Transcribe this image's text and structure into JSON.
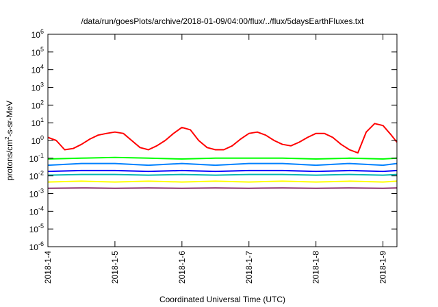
{
  "chart_data": {
    "type": "line",
    "title": "/data/run/goesPlots/archive/2018-01-09/04:00/flux/../flux/5daysEarthFluxes.txt",
    "xlabel": "Coordinated Universal Time (UTC)",
    "ylabel": "protons/cm²-s-sr-MeV",
    "x_ticks": [
      "2018-1-4",
      "2018-1-5",
      "2018-1-6",
      "2018-1-7",
      "2018-1-8",
      "2018-1-9"
    ],
    "xlim": [
      "2018-01-04T00:00",
      "2018-01-09T05:00"
    ],
    "y_scale": "log",
    "ylim": [
      1e-06,
      1000000.0
    ],
    "y_tick_exponents": [
      -6,
      -5,
      -4,
      -3,
      -2,
      -1,
      0,
      1,
      2,
      3,
      4,
      5,
      6
    ],
    "y_tick_base": "10",
    "grid": false,
    "legend": "none",
    "series": [
      {
        "color": "#ff0000",
        "x": [
          "2018-01-04T00:00",
          "2018-01-04T03:00",
          "2018-01-04T06:00",
          "2018-01-04T09:00",
          "2018-01-04T12:00",
          "2018-01-04T15:00",
          "2018-01-04T18:00",
          "2018-01-04T21:00",
          "2018-01-05T00:00",
          "2018-01-05T03:00",
          "2018-01-05T06:00",
          "2018-01-05T09:00",
          "2018-01-05T12:00",
          "2018-01-05T15:00",
          "2018-01-05T18:00",
          "2018-01-05T21:00",
          "2018-01-06T00:00",
          "2018-01-06T03:00",
          "2018-01-06T06:00",
          "2018-01-06T09:00",
          "2018-01-06T12:00",
          "2018-01-06T15:00",
          "2018-01-06T18:00",
          "2018-01-06T21:00",
          "2018-01-07T00:00",
          "2018-01-07T03:00",
          "2018-01-07T06:00",
          "2018-01-07T09:00",
          "2018-01-07T12:00",
          "2018-01-07T15:00",
          "2018-01-07T18:00",
          "2018-01-07T21:00",
          "2018-01-08T00:00",
          "2018-01-08T03:00",
          "2018-01-08T06:00",
          "2018-01-08T09:00",
          "2018-01-08T12:00",
          "2018-01-08T15:00",
          "2018-01-08T18:00",
          "2018-01-08T21:00",
          "2018-01-09T00:00",
          "2018-01-09T03:00",
          "2018-01-09T05:00"
        ],
        "values": [
          1.5,
          1.0,
          0.3,
          0.35,
          0.6,
          1.2,
          2.0,
          2.5,
          3.0,
          2.5,
          1.0,
          0.4,
          0.3,
          0.5,
          1.0,
          2.5,
          5.5,
          4.0,
          1.0,
          0.4,
          0.3,
          0.3,
          0.5,
          1.2,
          2.5,
          3.0,
          2.0,
          1.0,
          0.6,
          0.5,
          0.8,
          1.5,
          2.5,
          2.5,
          1.5,
          0.6,
          0.3,
          0.2,
          3.0,
          9.0,
          7.0,
          2.0,
          0.8
        ]
      },
      {
        "color": "#00ff00",
        "x": [
          "2018-01-04T00:00",
          "2018-01-04T12:00",
          "2018-01-05T00:00",
          "2018-01-05T12:00",
          "2018-01-06T00:00",
          "2018-01-06T12:00",
          "2018-01-07T00:00",
          "2018-01-07T12:00",
          "2018-01-08T00:00",
          "2018-01-08T12:00",
          "2018-01-09T00:00",
          "2018-01-09T05:00"
        ],
        "values": [
          0.09,
          0.1,
          0.11,
          0.1,
          0.09,
          0.1,
          0.1,
          0.1,
          0.09,
          0.1,
          0.09,
          0.1
        ]
      },
      {
        "color": "#0080ff",
        "x": [
          "2018-01-04T00:00",
          "2018-01-04T12:00",
          "2018-01-05T00:00",
          "2018-01-05T12:00",
          "2018-01-06T00:00",
          "2018-01-06T12:00",
          "2018-01-07T00:00",
          "2018-01-07T12:00",
          "2018-01-08T00:00",
          "2018-01-08T12:00",
          "2018-01-09T00:00",
          "2018-01-09T05:00"
        ],
        "values": [
          0.04,
          0.05,
          0.05,
          0.04,
          0.05,
          0.04,
          0.05,
          0.05,
          0.04,
          0.05,
          0.04,
          0.05
        ]
      },
      {
        "color": "#0000ff",
        "x": [
          "2018-01-04T00:00",
          "2018-01-04T12:00",
          "2018-01-05T00:00",
          "2018-01-05T12:00",
          "2018-01-06T00:00",
          "2018-01-06T12:00",
          "2018-01-07T00:00",
          "2018-01-07T12:00",
          "2018-01-08T00:00",
          "2018-01-08T12:00",
          "2018-01-09T00:00",
          "2018-01-09T05:00"
        ],
        "values": [
          0.018,
          0.02,
          0.02,
          0.018,
          0.02,
          0.018,
          0.02,
          0.02,
          0.018,
          0.02,
          0.018,
          0.02
        ]
      },
      {
        "color": "#00b4b4",
        "x": [
          "2018-01-04T00:00",
          "2018-01-04T12:00",
          "2018-01-05T00:00",
          "2018-01-05T12:00",
          "2018-01-06T00:00",
          "2018-01-06T12:00",
          "2018-01-07T00:00",
          "2018-01-07T12:00",
          "2018-01-08T00:00",
          "2018-01-08T12:00",
          "2018-01-09T00:00",
          "2018-01-09T05:00"
        ],
        "values": [
          0.011,
          0.012,
          0.012,
          0.011,
          0.012,
          0.011,
          0.012,
          0.012,
          0.011,
          0.012,
          0.011,
          0.012
        ]
      },
      {
        "color": "#ffff00",
        "x": [
          "2018-01-04T00:00",
          "2018-01-04T12:00",
          "2018-01-05T00:00",
          "2018-01-05T12:00",
          "2018-01-06T00:00",
          "2018-01-06T12:00",
          "2018-01-07T00:00",
          "2018-01-07T12:00",
          "2018-01-08T00:00",
          "2018-01-08T12:00",
          "2018-01-09T00:00",
          "2018-01-09T05:00"
        ],
        "values": [
          0.0045,
          0.005,
          0.0045,
          0.005,
          0.0045,
          0.005,
          0.0045,
          0.005,
          0.0045,
          0.005,
          0.0045,
          0.005
        ]
      },
      {
        "color": "#8b2f6e",
        "x": [
          "2018-01-04T00:00",
          "2018-01-04T12:00",
          "2018-01-05T00:00",
          "2018-01-05T12:00",
          "2018-01-06T00:00",
          "2018-01-06T12:00",
          "2018-01-07T00:00",
          "2018-01-07T12:00",
          "2018-01-08T00:00",
          "2018-01-08T12:00",
          "2018-01-09T00:00",
          "2018-01-09T05:00"
        ],
        "values": [
          0.002,
          0.0021,
          0.002,
          0.0021,
          0.002,
          0.0021,
          0.002,
          0.0021,
          0.002,
          0.0021,
          0.002,
          0.0021
        ]
      }
    ]
  }
}
